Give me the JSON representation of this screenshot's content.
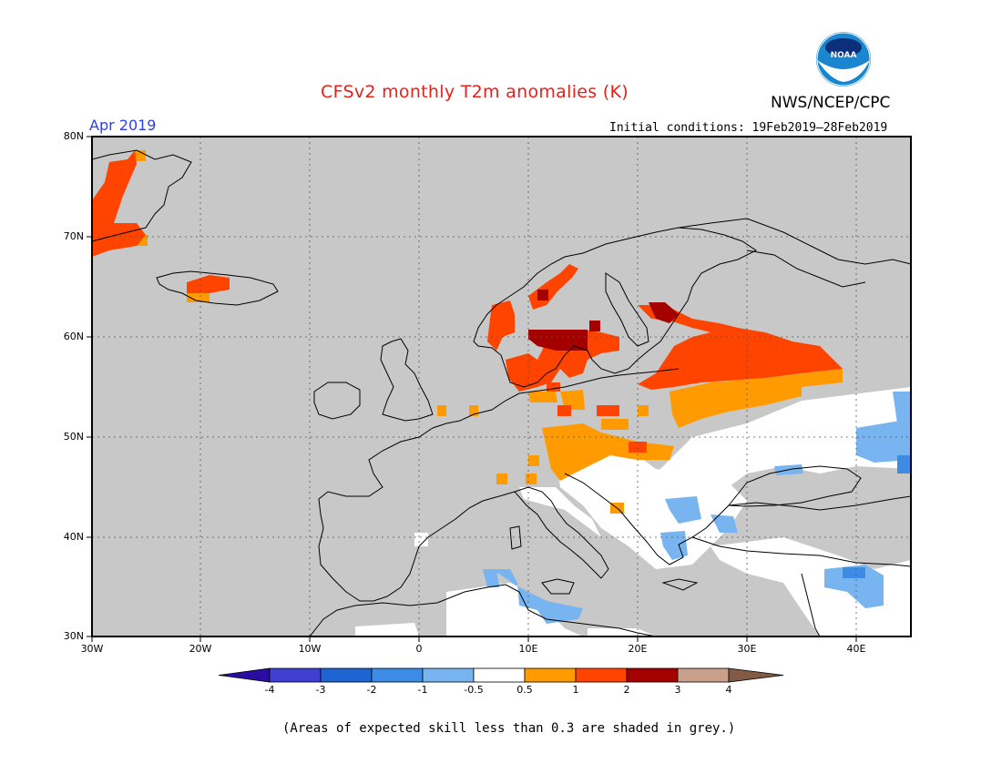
{
  "header": {
    "title": "CFSv2 monthly T2m anomalies (K)",
    "agency": "NWS/NCEP/CPC",
    "forecast_month": "Apr 2019",
    "initial_conditions": "Initial conditions: 19Feb2019–28Feb2019",
    "logo_text": "NOAA"
  },
  "map": {
    "lat_labels": [
      "80N",
      "70N",
      "60N",
      "50N",
      "40N",
      "30N"
    ],
    "lon_labels": [
      "30W",
      "20W",
      "10W",
      "0",
      "10E",
      "20E",
      "30E",
      "40E"
    ],
    "background_color": "#c8c8c8"
  },
  "colorbar": {
    "labels": [
      "-4",
      "-3",
      "-2",
      "-1",
      "-0.5",
      "0.5",
      "1",
      "2",
      "3",
      "4"
    ],
    "colors": [
      "#2a0ca0",
      "#3f3fd4",
      "#1e64d2",
      "#3c8ce6",
      "#78b4f0",
      "#ffffff",
      "#ff9b00",
      "#ff4400",
      "#a50000",
      "#c8a08c",
      "#825a46"
    ]
  },
  "footnote": "(Areas of expected skill less than 0.3 are shaded in grey.)"
}
